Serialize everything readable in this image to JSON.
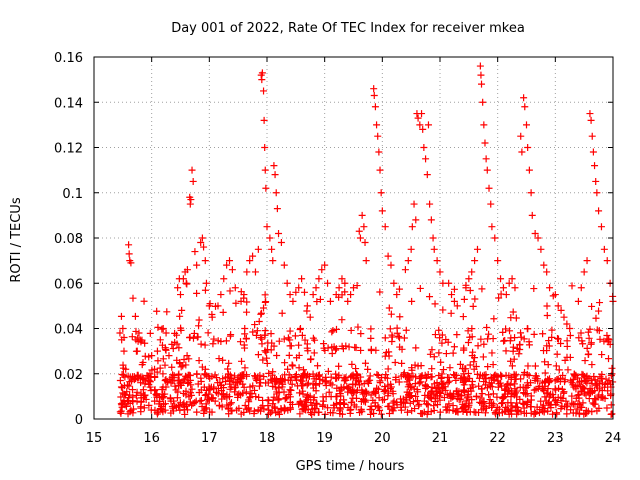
{
  "chart_data": {
    "type": "scatter",
    "title": "Day 001 of 2022, Rate Of TEC Index for receiver mkea",
    "xlabel": "GPS time / hours",
    "ylabel": "ROTI / TECUs",
    "xlim": [
      15,
      24
    ],
    "ylim": [
      0,
      0.16
    ],
    "x_ticks": [
      "15",
      "16",
      "17",
      "18",
      "19",
      "20",
      "21",
      "22",
      "23",
      "24"
    ],
    "y_ticks": [
      "0",
      "0.02",
      "0.04",
      "0.06",
      "0.08",
      "0.1",
      "0.12",
      "0.14",
      "0.16"
    ],
    "grid": true,
    "marker": "+",
    "series_color": "#ff0000",
    "series": [
      {
        "points": [
          [
            15.45,
            0.038
          ],
          [
            15.48,
            0.035
          ],
          [
            15.5,
            0.04
          ],
          [
            15.52,
            0.03
          ],
          [
            15.55,
            0.022
          ],
          [
            15.58,
            0.015
          ],
          [
            15.6,
            0.077
          ],
          [
            15.61,
            0.073
          ],
          [
            15.62,
            0.07
          ],
          [
            15.64,
            0.069
          ],
          [
            15.7,
            0.018
          ],
          [
            15.75,
            0.03
          ],
          [
            15.78,
            0.038
          ],
          [
            15.8,
            0.035
          ],
          [
            15.85,
            0.025
          ],
          [
            16.0,
            0.028
          ],
          [
            16.05,
            0.022
          ],
          [
            16.1,
            0.03
          ],
          [
            16.15,
            0.035
          ],
          [
            16.2,
            0.04
          ],
          [
            16.25,
            0.038
          ],
          [
            16.3,
            0.028
          ],
          [
            16.35,
            0.033
          ],
          [
            16.45,
            0.058
          ],
          [
            16.48,
            0.062
          ],
          [
            16.5,
            0.055
          ],
          [
            16.52,
            0.048
          ],
          [
            16.55,
            0.062
          ],
          [
            16.58,
            0.065
          ],
          [
            16.6,
            0.06
          ],
          [
            16.62,
            0.066
          ],
          [
            16.66,
            0.098
          ],
          [
            16.67,
            0.095
          ],
          [
            16.68,
            0.097
          ],
          [
            16.7,
            0.11
          ],
          [
            16.72,
            0.105
          ],
          [
            16.75,
            0.074
          ],
          [
            16.78,
            0.068
          ],
          [
            16.85,
            0.078
          ],
          [
            16.88,
            0.08
          ],
          [
            16.9,
            0.076
          ],
          [
            16.93,
            0.07
          ],
          [
            16.95,
            0.06
          ],
          [
            17.0,
            0.05
          ],
          [
            17.05,
            0.045
          ],
          [
            17.15,
            0.05
          ],
          [
            17.2,
            0.055
          ],
          [
            17.25,
            0.062
          ],
          [
            17.3,
            0.068
          ],
          [
            17.35,
            0.07
          ],
          [
            17.4,
            0.066
          ],
          [
            17.45,
            0.058
          ],
          [
            17.55,
            0.052
          ],
          [
            17.6,
            0.055
          ],
          [
            17.65,
            0.065
          ],
          [
            17.7,
            0.07
          ],
          [
            17.75,
            0.072
          ],
          [
            17.8,
            0.065
          ],
          [
            17.85,
            0.075
          ],
          [
            17.9,
            0.152
          ],
          [
            17.91,
            0.15
          ],
          [
            17.92,
            0.153
          ],
          [
            17.94,
            0.145
          ],
          [
            17.95,
            0.132
          ],
          [
            17.96,
            0.12
          ],
          [
            17.97,
            0.11
          ],
          [
            17.98,
            0.102
          ],
          [
            18.0,
            0.085
          ],
          [
            18.05,
            0.08
          ],
          [
            18.08,
            0.075
          ],
          [
            18.1,
            0.07
          ],
          [
            18.12,
            0.112
          ],
          [
            18.14,
            0.108
          ],
          [
            18.16,
            0.1
          ],
          [
            18.18,
            0.093
          ],
          [
            18.2,
            0.082
          ],
          [
            18.25,
            0.078
          ],
          [
            18.3,
            0.068
          ],
          [
            18.35,
            0.06
          ],
          [
            18.4,
            0.055
          ],
          [
            18.45,
            0.052
          ],
          [
            18.5,
            0.056
          ],
          [
            18.55,
            0.058
          ],
          [
            18.6,
            0.062
          ],
          [
            18.65,
            0.056
          ],
          [
            18.7,
            0.05
          ],
          [
            18.75,
            0.045
          ],
          [
            18.8,
            0.055
          ],
          [
            18.85,
            0.058
          ],
          [
            18.9,
            0.062
          ],
          [
            18.95,
            0.066
          ],
          [
            19.0,
            0.068
          ],
          [
            19.05,
            0.06
          ],
          [
            19.1,
            0.052
          ],
          [
            19.2,
            0.055
          ],
          [
            19.25,
            0.058
          ],
          [
            19.3,
            0.062
          ],
          [
            19.35,
            0.06
          ],
          [
            19.4,
            0.052
          ],
          [
            19.45,
            0.055
          ],
          [
            19.5,
            0.058
          ],
          [
            19.6,
            0.083
          ],
          [
            19.62,
            0.08
          ],
          [
            19.65,
            0.09
          ],
          [
            19.68,
            0.085
          ],
          [
            19.7,
            0.078
          ],
          [
            19.72,
            0.07
          ],
          [
            19.85,
            0.146
          ],
          [
            19.86,
            0.143
          ],
          [
            19.88,
            0.138
          ],
          [
            19.9,
            0.13
          ],
          [
            19.92,
            0.125
          ],
          [
            19.94,
            0.118
          ],
          [
            19.96,
            0.11
          ],
          [
            19.98,
            0.1
          ],
          [
            20.0,
            0.092
          ],
          [
            20.05,
            0.085
          ],
          [
            20.1,
            0.072
          ],
          [
            20.15,
            0.068
          ],
          [
            20.2,
            0.06
          ],
          [
            20.25,
            0.055
          ],
          [
            20.4,
            0.066
          ],
          [
            20.45,
            0.07
          ],
          [
            20.5,
            0.075
          ],
          [
            20.52,
            0.085
          ],
          [
            20.55,
            0.095
          ],
          [
            20.58,
            0.088
          ],
          [
            20.6,
            0.135
          ],
          [
            20.62,
            0.133
          ],
          [
            20.65,
            0.13
          ],
          [
            20.68,
            0.135
          ],
          [
            20.7,
            0.128
          ],
          [
            20.72,
            0.12
          ],
          [
            20.75,
            0.115
          ],
          [
            20.78,
            0.108
          ],
          [
            20.8,
            0.13
          ],
          [
            20.82,
            0.095
          ],
          [
            20.85,
            0.088
          ],
          [
            20.88,
            0.08
          ],
          [
            20.9,
            0.075
          ],
          [
            20.95,
            0.07
          ],
          [
            21.0,
            0.065
          ],
          [
            21.05,
            0.06
          ],
          [
            21.15,
            0.06
          ],
          [
            21.2,
            0.055
          ],
          [
            21.25,
            0.052
          ],
          [
            21.3,
            0.05
          ],
          [
            21.45,
            0.058
          ],
          [
            21.5,
            0.062
          ],
          [
            21.55,
            0.065
          ],
          [
            21.6,
            0.07
          ],
          [
            21.65,
            0.075
          ],
          [
            21.7,
            0.156
          ],
          [
            21.71,
            0.152
          ],
          [
            21.72,
            0.148
          ],
          [
            21.74,
            0.14
          ],
          [
            21.76,
            0.13
          ],
          [
            21.78,
            0.122
          ],
          [
            21.8,
            0.115
          ],
          [
            21.82,
            0.11
          ],
          [
            21.85,
            0.102
          ],
          [
            21.88,
            0.095
          ],
          [
            21.9,
            0.085
          ],
          [
            21.95,
            0.08
          ],
          [
            22.0,
            0.07
          ],
          [
            22.05,
            0.062
          ],
          [
            22.1,
            0.058
          ],
          [
            22.15,
            0.055
          ],
          [
            22.2,
            0.06
          ],
          [
            22.25,
            0.062
          ],
          [
            22.3,
            0.058
          ],
          [
            22.4,
            0.125
          ],
          [
            22.42,
            0.118
          ],
          [
            22.45,
            0.142
          ],
          [
            22.47,
            0.138
          ],
          [
            22.5,
            0.13
          ],
          [
            22.52,
            0.12
          ],
          [
            22.55,
            0.11
          ],
          [
            22.58,
            0.1
          ],
          [
            22.6,
            0.09
          ],
          [
            22.65,
            0.082
          ],
          [
            22.7,
            0.08
          ],
          [
            22.75,
            0.075
          ],
          [
            22.8,
            0.068
          ],
          [
            22.85,
            0.065
          ],
          [
            22.9,
            0.058
          ],
          [
            23.0,
            0.055
          ],
          [
            23.05,
            0.05
          ],
          [
            23.1,
            0.048
          ],
          [
            23.15,
            0.045
          ],
          [
            23.2,
            0.042
          ],
          [
            23.25,
            0.04
          ],
          [
            23.4,
            0.052
          ],
          [
            23.45,
            0.058
          ],
          [
            23.5,
            0.065
          ],
          [
            23.55,
            0.07
          ],
          [
            23.6,
            0.135
          ],
          [
            23.62,
            0.132
          ],
          [
            23.64,
            0.125
          ],
          [
            23.66,
            0.118
          ],
          [
            23.68,
            0.112
          ],
          [
            23.7,
            0.105
          ],
          [
            23.72,
            0.1
          ],
          [
            23.75,
            0.092
          ],
          [
            23.8,
            0.085
          ],
          [
            23.85,
            0.075
          ],
          [
            23.9,
            0.07
          ],
          [
            23.95,
            0.06
          ],
          [
            24.0,
            0.052
          ]
        ]
      }
    ]
  }
}
